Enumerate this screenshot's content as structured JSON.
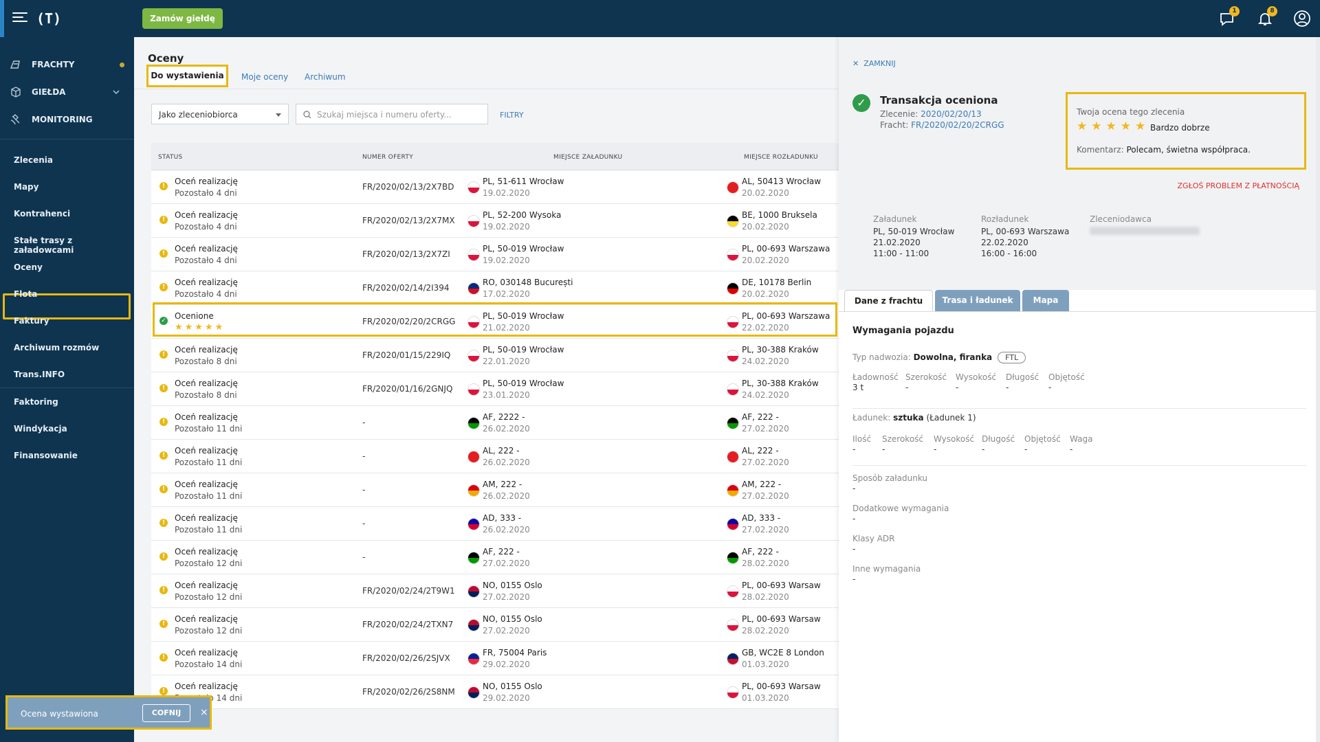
{
  "topbar": {
    "logo": "(T)",
    "order_button": "Zamów giełdę",
    "messages_badge": "1",
    "notifications_badge": "8"
  },
  "sidebar": {
    "top_items": [
      {
        "label": "FRACHTY",
        "icon": "freight-icon"
      },
      {
        "label": "GIEŁDA",
        "icon": "cube-icon"
      },
      {
        "label": "MONITORING",
        "icon": "satellite-icon"
      }
    ],
    "items": [
      {
        "label": "Zlecenia"
      },
      {
        "label": "Mapy"
      },
      {
        "label": "Kontrahenci"
      },
      {
        "label": "Stałe trasy z załadowcami"
      },
      {
        "label": "Oceny"
      },
      {
        "label": "Flota"
      },
      {
        "label": "Faktury"
      },
      {
        "label": "Archiwum rozmów"
      },
      {
        "label": "Trans.INFO"
      },
      {
        "label": "Faktoring"
      },
      {
        "label": "Windykacja"
      },
      {
        "label": "Finansowanie"
      }
    ]
  },
  "toast": {
    "label": "Ocena wystawiona",
    "undo": "COFNIJ",
    "close": "×"
  },
  "main": {
    "title": "Oceny",
    "tabs": [
      "Do wystawienia",
      "Moje oceny",
      "Archiwum"
    ],
    "select_value": "Jako zleceniobiorca",
    "search_placeholder": "Szukaj miejsca i numeru oferty...",
    "filters": "FILTRY",
    "columns": [
      "STATUS",
      "NUMER OFERTY",
      "MIEJSCE ZAŁADUNKU",
      "MIEJSCE ROZŁADUNKU"
    ],
    "rows": [
      {
        "s1": "Oceń realizację",
        "s2": "Pozostało 4 dni",
        "offer": "FR/2020/02/13/2X7BD",
        "l1": "PL, 51-611 Wrocław",
        "ld": "19.02.2020",
        "lf": "pl",
        "u1": "AL, 50413 Wrocław",
        "ud": "20.02.2020",
        "uf": "al"
      },
      {
        "s1": "Oceń realizację",
        "s2": "Pozostało 4 dni",
        "offer": "FR/2020/02/13/2X7MX",
        "l1": "PL, 52-200 Wysoka",
        "ld": "19.02.2020",
        "lf": "pl",
        "u1": "BE, 1000 Bruksela",
        "ud": "20.02.2020",
        "uf": "be"
      },
      {
        "s1": "Oceń realizację",
        "s2": "Pozostało 4 dni",
        "offer": "FR/2020/02/13/2X7ZI",
        "l1": "PL, 50-019 Wrocław",
        "ld": "19.02.2020",
        "lf": "pl",
        "u1": "PL, 00-693 Warszawa",
        "ud": "20.02.2020",
        "uf": "pl"
      },
      {
        "s1": "Oceń realizację",
        "s2": "Pozostało 4 dni",
        "offer": "FR/2020/02/14/2I394",
        "l1": "RO, 030148 București",
        "ld": "17.02.2020",
        "lf": "ro",
        "u1": "DE, 10178 Berlin",
        "ud": "20.02.2020",
        "uf": "de"
      },
      {
        "s1": "Ocenione",
        "s2": "★★★★★",
        "offer": "FR/2020/02/20/2CRGG",
        "l1": "PL, 50-019 Wrocław",
        "ld": "21.02.2020",
        "lf": "pl",
        "u1": "PL, 00-693 Warszawa",
        "ud": "22.02.2020",
        "uf": "pl",
        "done": true
      },
      {
        "s1": "Oceń realizację",
        "s2": "Pozostało 8 dni",
        "offer": "FR/2020/01/15/229IQ",
        "l1": "PL, 50-019 Wrocław",
        "ld": "22.01.2020",
        "lf": "pl",
        "u1": "PL, 30-388 Kraków",
        "ud": "24.02.2020",
        "uf": "pl"
      },
      {
        "s1": "Oceń realizację",
        "s2": "Pozostało 8 dni",
        "offer": "FR/2020/01/16/2GNJQ",
        "l1": "PL, 50-019 Wrocław",
        "ld": "23.01.2020",
        "lf": "pl",
        "u1": "PL, 30-388 Kraków",
        "ud": "24.02.2020",
        "uf": "pl"
      },
      {
        "s1": "Oceń realizację",
        "s2": "Pozostało 11 dni",
        "offer": "-",
        "l1": "AF, 2222 -",
        "ld": "26.02.2020",
        "lf": "af",
        "u1": "AF, 222 -",
        "ud": "27.02.2020",
        "uf": "af"
      },
      {
        "s1": "Oceń realizację",
        "s2": "Pozostało 11 dni",
        "offer": "-",
        "l1": "AL, 222 -",
        "ld": "26.02.2020",
        "lf": "al",
        "u1": "AL, 222 -",
        "ud": "27.02.2020",
        "uf": "al"
      },
      {
        "s1": "Oceń realizację",
        "s2": "Pozostało 11 dni",
        "offer": "-",
        "l1": "AM, 222 -",
        "ld": "26.02.2020",
        "lf": "am",
        "u1": "AM, 222 -",
        "ud": "27.02.2020",
        "uf": "am"
      },
      {
        "s1": "Oceń realizację",
        "s2": "Pozostało 11 dni",
        "offer": "-",
        "l1": "AD, 333 -",
        "ld": "26.02.2020",
        "lf": "ad",
        "u1": "AD, 333 -",
        "ud": "27.02.2020",
        "uf": "ad"
      },
      {
        "s1": "Oceń realizację",
        "s2": "Pozostało 12 dni",
        "offer": "-",
        "l1": "AF, 222 -",
        "ld": "27.02.2020",
        "lf": "af",
        "u1": "AF, 222 -",
        "ud": "28.02.2020",
        "uf": "af"
      },
      {
        "s1": "Oceń realizację",
        "s2": "Pozostało 12 dni",
        "offer": "FR/2020/02/24/2T9W1",
        "l1": "NO, 0155 Oslo",
        "ld": "27.02.2020",
        "lf": "no",
        "u1": "PL, 00-693 Warsaw",
        "ud": "28.02.2020",
        "uf": "pl"
      },
      {
        "s1": "Oceń realizację",
        "s2": "Pozostało 12 dni",
        "offer": "FR/2020/02/24/2TXN7",
        "l1": "NO, 0155 Oslo",
        "ld": "27.02.2020",
        "lf": "no",
        "u1": "PL, 00-693 Warsaw",
        "ud": "28.02.2020",
        "uf": "pl"
      },
      {
        "s1": "Oceń realizację",
        "s2": "Pozostało 14 dni",
        "offer": "FR/2020/02/26/2SJVX",
        "l1": "FR, 75004 Paris",
        "ld": "29.02.2020",
        "lf": "fr",
        "u1": "GB, WC2E 8 London",
        "ud": "01.03.2020",
        "uf": "gb"
      },
      {
        "s1": "Oceń realizację",
        "s2": "Pozostało 14 dni",
        "offer": "FR/2020/02/26/2S8NM",
        "l1": "NO, 0155 Oslo",
        "ld": "29.02.2020",
        "lf": "no",
        "u1": "PL, 00-693 Warsaw",
        "ud": "01.03.2020",
        "uf": "pl"
      }
    ]
  },
  "panel": {
    "close": "ZAMKNIJ",
    "title": "Transakcja oceniona",
    "order_label": "Zlecenie:",
    "order_value": "2020/02/20/13",
    "freight_label": "Fracht:",
    "freight_value": "FR/2020/02/20/2CRGG",
    "rating_title": "Twoja ocena tego zlecenia",
    "rating_stars": "★★★★★",
    "rating_text": "Bardzo dobrze",
    "comment_label": "Komentarz:",
    "comment_value": "Polecam, świetna współpraca.",
    "report": "ZGŁOŚ PROBLEM Z PŁATNOŚCIĄ",
    "load_label": "Załadunek",
    "load_place": "PL, 50-019 Wrocław",
    "load_date": "21.02.2020",
    "load_time": "11:00 - 11:00",
    "unload_label": "Rozładunek",
    "unload_place": "PL, 00-693 Warszawa",
    "unload_date": "22.02.2020",
    "unload_time": "16:00 - 16:00",
    "client_label": "Zleceniodawca",
    "tabs": [
      "Dane z frachtu",
      "Trasa i ładunek",
      "Mapa"
    ],
    "section": "Wymagania pojazdu",
    "body_label": "Typ nadwozia:",
    "body_value": "Dowolna, firanka",
    "body_pill": "FTL",
    "vehicle_fields": [
      {
        "label": "Ładowność",
        "value": "3 t"
      },
      {
        "label": "Szerokość",
        "value": "-"
      },
      {
        "label": "Wysokość",
        "value": "-"
      },
      {
        "label": "Długość",
        "value": "-"
      },
      {
        "label": "Objętość",
        "value": "-"
      }
    ],
    "cargo_label": "Ładunek:",
    "cargo_value": "sztuka",
    "cargo_extra": "(Ładunek 1)",
    "cargo_fields": [
      {
        "label": "Ilość",
        "value": "-"
      },
      {
        "label": "Szerokość",
        "value": "-"
      },
      {
        "label": "Wysokość",
        "value": "-"
      },
      {
        "label": "Długość",
        "value": "-"
      },
      {
        "label": "Objętość",
        "value": "-"
      },
      {
        "label": "Waga",
        "value": "-"
      }
    ],
    "extra_fields": [
      {
        "label": "Sposób załadunku",
        "value": "-"
      },
      {
        "label": "Dodatkowe wymagania",
        "value": "-"
      },
      {
        "label": "Klasy ADR",
        "value": "-"
      },
      {
        "label": "Inne wymagania",
        "value": "-"
      }
    ]
  }
}
